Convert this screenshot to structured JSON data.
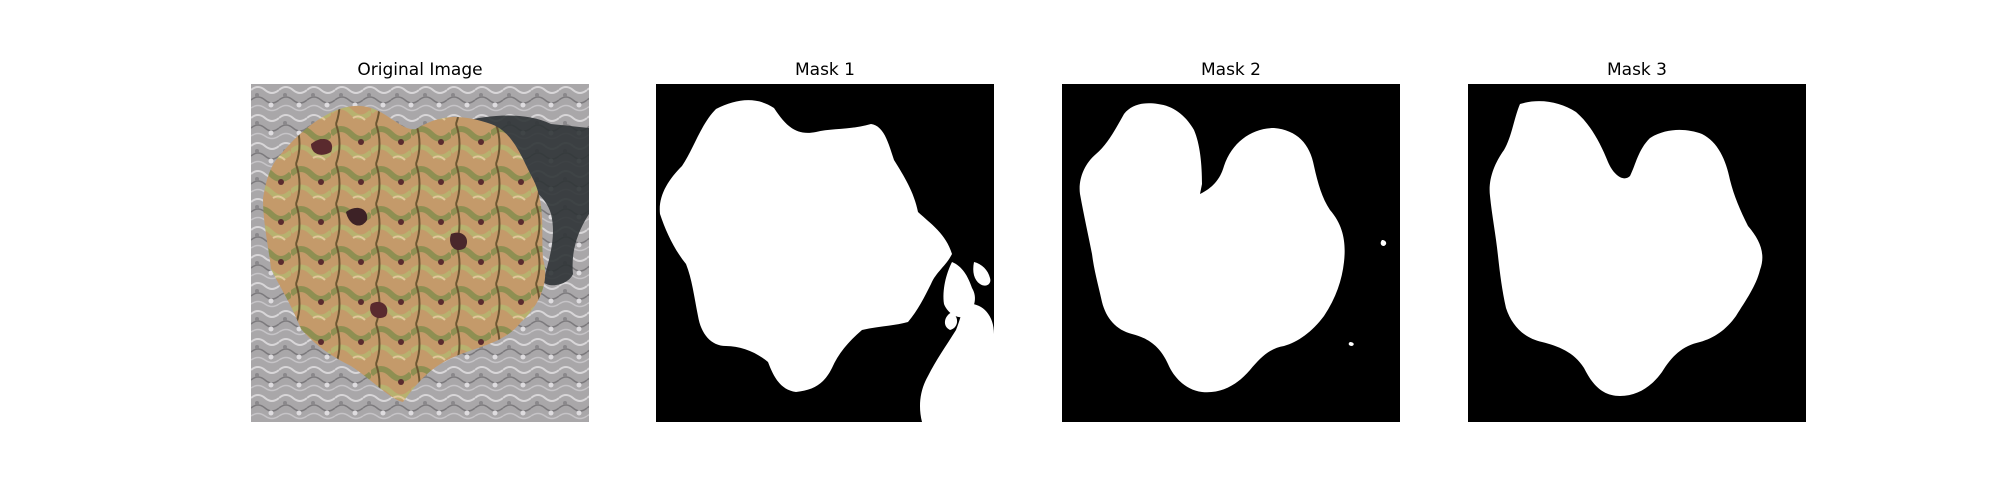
{
  "figure": {
    "panels": [
      {
        "title": "Original Image",
        "kind": "photo"
      },
      {
        "title": "Mask 1",
        "kind": "mask"
      },
      {
        "title": "Mask 2",
        "kind": "mask"
      },
      {
        "title": "Mask 3",
        "kind": "mask"
      }
    ]
  },
  "colors": {
    "mask_background": "#000000",
    "mask_foreground": "#ffffff",
    "photo_background": "#a9a7a9",
    "photo_leaf_tan": "#c49a6a",
    "photo_leaf_olive": "#8e8f52",
    "photo_leaf_dark": "#5a2a2e",
    "photo_shadow": "#2f3436"
  }
}
